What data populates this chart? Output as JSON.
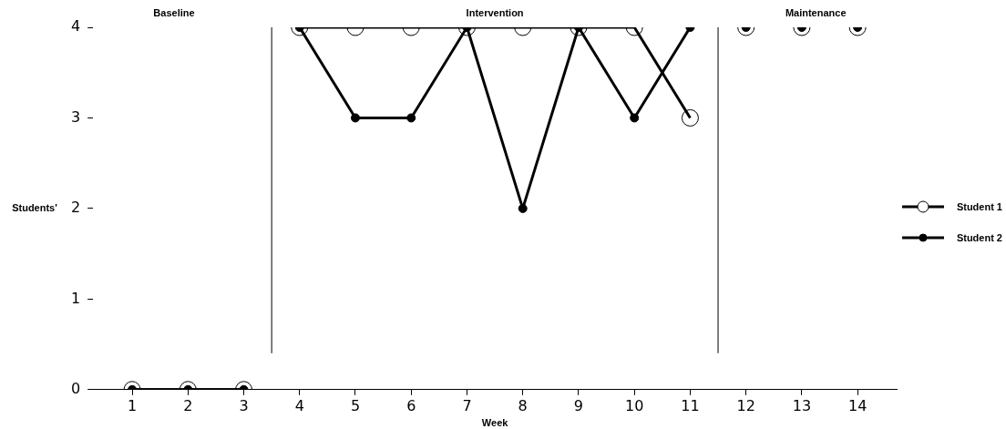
{
  "chart_data": {
    "type": "line",
    "xlabel": "Week",
    "ylabel": "Students'",
    "xlim": [
      0.3,
      14.7
    ],
    "xticks": [
      1,
      2,
      3,
      4,
      5,
      6,
      7,
      8,
      9,
      10,
      11,
      12,
      13,
      14
    ],
    "ylim": [
      0,
      4
    ],
    "yticks": [
      0,
      1,
      2,
      3,
      4
    ],
    "grid": false,
    "legend": "right",
    "marker": "circle",
    "annotations": [
      "Baseline",
      "Intervention",
      "Maintenance"
    ],
    "ref_lines": [
      {
        "axis": "x",
        "value": 3.5,
        "color": "#000000"
      },
      {
        "axis": "x",
        "value": 11.5,
        "color": "#000000"
      }
    ],
    "series": [
      {
        "name": "Student 1",
        "color": "#000000",
        "x": [
          4,
          5,
          6,
          7,
          8,
          9,
          10,
          11
        ],
        "values": [
          4,
          4,
          4,
          4,
          4,
          4,
          4,
          3
        ]
      },
      {
        "name": "Student 2",
        "color": "#000000",
        "x": [
          4,
          5,
          6,
          7,
          8,
          9,
          10,
          11
        ],
        "values": [
          4,
          3,
          3,
          4,
          2,
          4,
          3,
          4
        ]
      },
      {
        "color": "#000000",
        "x": [
          1,
          2,
          3
        ],
        "values": [
          0,
          0,
          0
        ]
      },
      {
        "color": "#000000",
        "x": [
          1,
          2,
          3
        ],
        "values": [
          0,
          0,
          0
        ]
      },
      {
        "type": "scatter",
        "color": "#000000",
        "x": [
          12,
          13,
          14
        ],
        "values": [
          4,
          4,
          4
        ]
      },
      {
        "type": "scatter",
        "color": "#000000",
        "x": [
          12,
          13,
          14
        ],
        "values": [
          4,
          4,
          4
        ]
      }
    ]
  }
}
